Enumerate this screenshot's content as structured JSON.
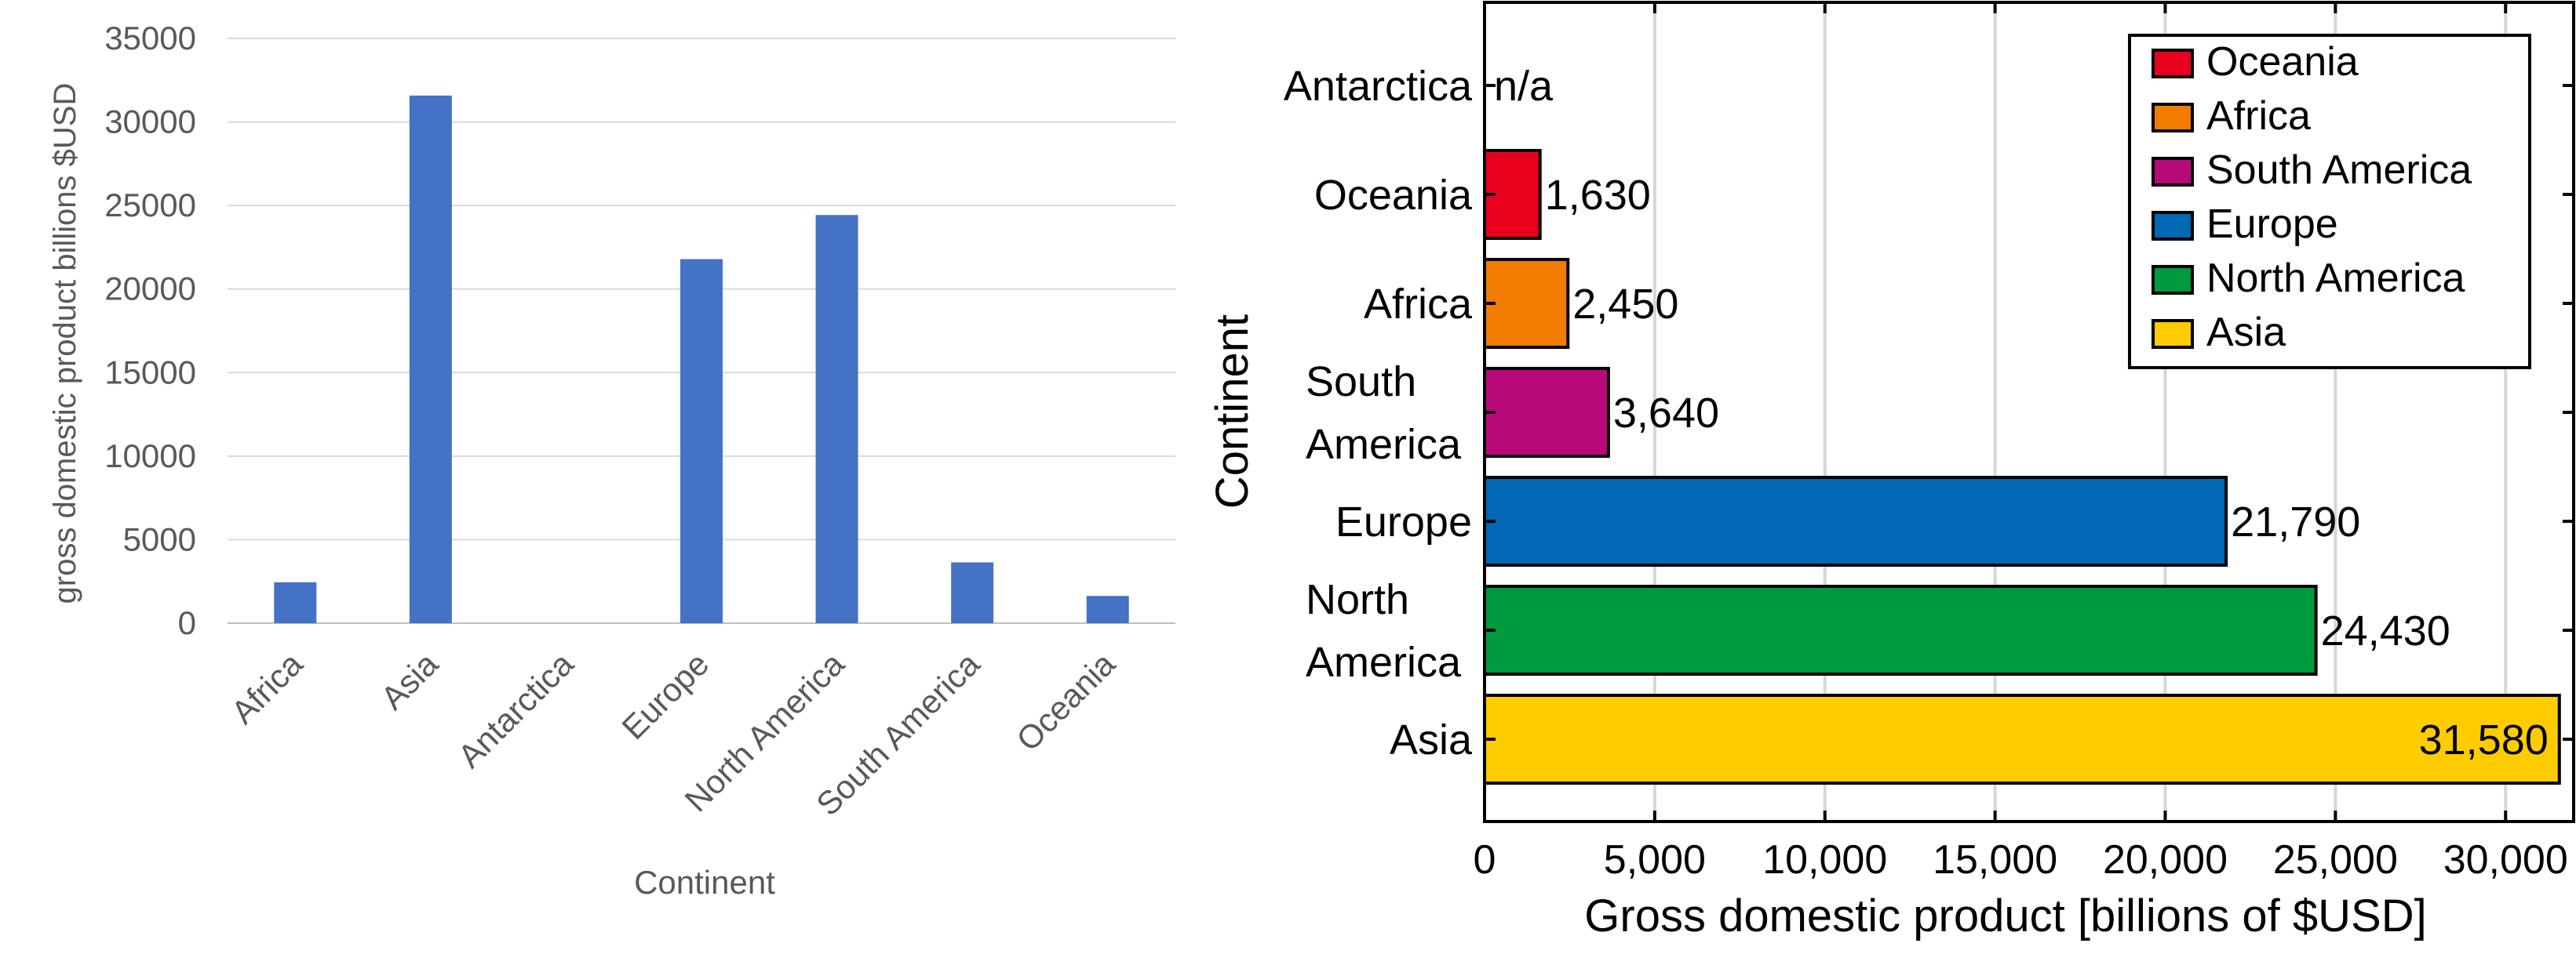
{
  "chart_data": [
    {
      "type": "bar",
      "orientation": "vertical",
      "categories": [
        "Africa",
        "Asia",
        "Antarctica",
        "Europe",
        "North America",
        "South America",
        "Oceania"
      ],
      "values": [
        2450,
        31580,
        null,
        21790,
        24430,
        3640,
        1630
      ],
      "title": "",
      "xlabel": "Continent",
      "ylabel": "gross domestic product  billions $USD",
      "ylim": [
        0,
        35000
      ],
      "yticks": [
        "0",
        "5000",
        "10000",
        "15000",
        "20000",
        "25000",
        "30000",
        "35000"
      ],
      "grid": true,
      "legend": "none",
      "bar_color": "#4472C4"
    },
    {
      "type": "bar",
      "orientation": "horizontal",
      "categories": [
        "Asia",
        "North America",
        "Europe",
        "South America",
        "Africa",
        "Oceania",
        "Antarctica"
      ],
      "category_lines": [
        [
          "Asia"
        ],
        [
          "North",
          "America"
        ],
        [
          "Europe"
        ],
        [
          "South",
          "America"
        ],
        [
          "Africa"
        ],
        [
          "Oceania"
        ],
        [
          "Antarctica"
        ]
      ],
      "values": [
        31580,
        24430,
        21790,
        3640,
        2450,
        1630,
        null
      ],
      "value_labels": [
        "31,580",
        "24,430",
        "21,790",
        "3,640",
        "2,450",
        "1,630",
        "n/a"
      ],
      "colors": [
        "#FFCC00",
        "#009A3E",
        "#0068B5",
        "#B8097A",
        "#F27C00",
        "#E8001C",
        null
      ],
      "title": "",
      "xlabel": "Gross domestic product [billions of $USD]",
      "ylabel": "Continent",
      "xlim": [
        0,
        32000
      ],
      "xticks": [
        "0",
        "5,000",
        "10,000",
        "15,000",
        "20,000",
        "25,000",
        "30,000"
      ],
      "grid": true,
      "legend": "top-right",
      "legend_entries": [
        {
          "name": "Oceania",
          "color": "#E8001C"
        },
        {
          "name": "Africa",
          "color": "#F27C00"
        },
        {
          "name": "South America",
          "color": "#B8097A"
        },
        {
          "name": "Europe",
          "color": "#0068B5"
        },
        {
          "name": "North America",
          "color": "#009A3E"
        },
        {
          "name": "Asia",
          "color": "#FFCC00"
        }
      ]
    }
  ]
}
